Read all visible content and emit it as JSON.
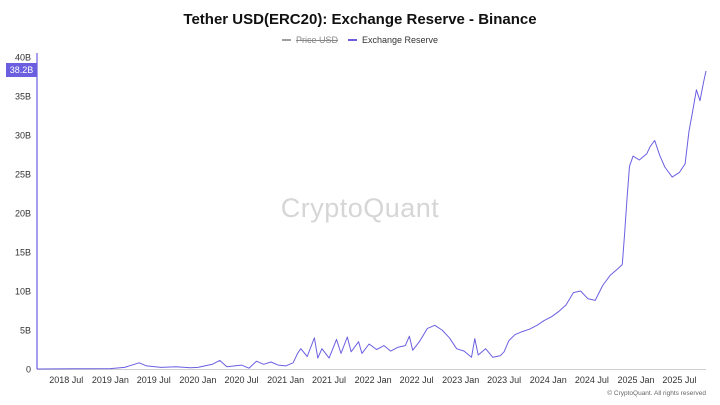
{
  "title": "Tether USD(ERC20): Exchange Reserve - Binance",
  "legend": [
    {
      "label": "Price USD",
      "color": "#a0a0a0",
      "hidden": true
    },
    {
      "label": "Exchange Reserve",
      "color": "#6b5fe0",
      "hidden": false
    }
  ],
  "watermark": "CryptoQuant",
  "copyright": "© CryptoQuant. All rights reserved",
  "current_value_label": "38.2B",
  "chart_data": {
    "type": "line",
    "title": "Tether USD(ERC20): Exchange Reserve - Binance",
    "xlabel": "",
    "ylabel": "",
    "ylim": [
      0,
      40
    ],
    "xlim": [
      "2018-03-01",
      "2025-10-20"
    ],
    "y_ticks": [
      {
        "value": 0,
        "label": "0"
      },
      {
        "value": 5,
        "label": "5B"
      },
      {
        "value": 10,
        "label": "10B"
      },
      {
        "value": 15,
        "label": "15B"
      },
      {
        "value": 20,
        "label": "20B"
      },
      {
        "value": 25,
        "label": "25B"
      },
      {
        "value": 30,
        "label": "30B"
      },
      {
        "value": 35,
        "label": "35B"
      },
      {
        "value": 40,
        "label": "40B"
      }
    ],
    "x_ticks": [
      {
        "date": "2018-07-01",
        "label": "2018 Jul"
      },
      {
        "date": "2019-01-01",
        "label": "2019 Jan"
      },
      {
        "date": "2019-07-01",
        "label": "2019 Jul"
      },
      {
        "date": "2020-01-01",
        "label": "2020 Jan"
      },
      {
        "date": "2020-07-01",
        "label": "2020 Jul"
      },
      {
        "date": "2021-01-01",
        "label": "2021 Jan"
      },
      {
        "date": "2021-07-01",
        "label": "2021 Jul"
      },
      {
        "date": "2022-01-01",
        "label": "2022 Jan"
      },
      {
        "date": "2022-07-01",
        "label": "2022 Jul"
      },
      {
        "date": "2023-01-01",
        "label": "2023 Jan"
      },
      {
        "date": "2023-07-01",
        "label": "2023 Jul"
      },
      {
        "date": "2024-01-01",
        "label": "2024 Jan"
      },
      {
        "date": "2024-07-01",
        "label": "2024 Jul"
      },
      {
        "date": "2025-01-01",
        "label": "2025 Jan"
      },
      {
        "date": "2025-07-01",
        "label": "2025 Jul"
      }
    ],
    "series": [
      {
        "name": "Exchange Reserve",
        "color": "#6b5fe0",
        "unit": "B",
        "points": [
          [
            "2018-03-01",
            0.0
          ],
          [
            "2018-08-01",
            0.02
          ],
          [
            "2019-01-01",
            0.05
          ],
          [
            "2019-03-01",
            0.2
          ],
          [
            "2019-05-01",
            0.8
          ],
          [
            "2019-06-01",
            0.4
          ],
          [
            "2019-08-01",
            0.2
          ],
          [
            "2019-10-01",
            0.3
          ],
          [
            "2019-12-01",
            0.15
          ],
          [
            "2020-01-01",
            0.2
          ],
          [
            "2020-03-01",
            0.6
          ],
          [
            "2020-04-01",
            1.1
          ],
          [
            "2020-05-01",
            0.3
          ],
          [
            "2020-07-01",
            0.5
          ],
          [
            "2020-08-01",
            0.1
          ],
          [
            "2020-09-01",
            1.0
          ],
          [
            "2020-10-01",
            0.6
          ],
          [
            "2020-11-01",
            0.9
          ],
          [
            "2020-12-01",
            0.5
          ],
          [
            "2021-01-01",
            0.4
          ],
          [
            "2021-02-01",
            0.8
          ],
          [
            "2021-02-20",
            2.0
          ],
          [
            "2021-03-05",
            2.6
          ],
          [
            "2021-04-01",
            1.6
          ],
          [
            "2021-05-01",
            4.0
          ],
          [
            "2021-05-15",
            1.4
          ],
          [
            "2021-06-01",
            2.6
          ],
          [
            "2021-07-01",
            1.4
          ],
          [
            "2021-08-01",
            3.8
          ],
          [
            "2021-08-20",
            2.0
          ],
          [
            "2021-09-15",
            4.1
          ],
          [
            "2021-10-01",
            2.2
          ],
          [
            "2021-11-01",
            3.5
          ],
          [
            "2021-11-15",
            2.0
          ],
          [
            "2021-12-15",
            3.2
          ],
          [
            "2022-01-15",
            2.5
          ],
          [
            "2022-02-15",
            3.0
          ],
          [
            "2022-03-15",
            2.3
          ],
          [
            "2022-04-15",
            2.8
          ],
          [
            "2022-05-15",
            3.0
          ],
          [
            "2022-06-01",
            4.2
          ],
          [
            "2022-06-15",
            2.4
          ],
          [
            "2022-07-15",
            3.6
          ],
          [
            "2022-08-15",
            5.2
          ],
          [
            "2022-09-15",
            5.6
          ],
          [
            "2022-10-15",
            5.0
          ],
          [
            "2022-11-15",
            4.0
          ],
          [
            "2022-12-15",
            2.6
          ],
          [
            "2023-01-15",
            2.3
          ],
          [
            "2023-02-15",
            1.5
          ],
          [
            "2023-03-01",
            3.9
          ],
          [
            "2023-03-15",
            1.8
          ],
          [
            "2023-04-15",
            2.6
          ],
          [
            "2023-05-15",
            1.5
          ],
          [
            "2023-06-15",
            1.7
          ],
          [
            "2023-07-01",
            2.2
          ],
          [
            "2023-07-20",
            3.6
          ],
          [
            "2023-08-15",
            4.4
          ],
          [
            "2023-09-15",
            4.8
          ],
          [
            "2023-10-15",
            5.1
          ],
          [
            "2023-11-15",
            5.6
          ],
          [
            "2023-12-15",
            6.2
          ],
          [
            "2024-01-15",
            6.7
          ],
          [
            "2024-02-15",
            7.4
          ],
          [
            "2024-03-15",
            8.2
          ],
          [
            "2024-04-15",
            9.8
          ],
          [
            "2024-05-15",
            10.0
          ],
          [
            "2024-06-15",
            9.0
          ],
          [
            "2024-07-15",
            8.8
          ],
          [
            "2024-08-15",
            10.7
          ],
          [
            "2024-09-15",
            12.0
          ],
          [
            "2024-10-15",
            12.8
          ],
          [
            "2024-11-05",
            13.4
          ],
          [
            "2024-11-15",
            17.5
          ],
          [
            "2024-11-25",
            22.0
          ],
          [
            "2024-12-05",
            26.0
          ],
          [
            "2024-12-20",
            27.3
          ],
          [
            "2025-01-15",
            26.8
          ],
          [
            "2025-02-15",
            27.6
          ],
          [
            "2025-03-01",
            28.5
          ],
          [
            "2025-03-20",
            29.3
          ],
          [
            "2025-04-10",
            27.4
          ],
          [
            "2025-05-01",
            25.9
          ],
          [
            "2025-06-01",
            24.6
          ],
          [
            "2025-07-01",
            25.2
          ],
          [
            "2025-07-25",
            26.3
          ],
          [
            "2025-08-10",
            30.5
          ],
          [
            "2025-08-25",
            33.0
          ],
          [
            "2025-09-10",
            35.8
          ],
          [
            "2025-09-25",
            34.4
          ],
          [
            "2025-10-10",
            36.8
          ],
          [
            "2025-10-20",
            38.2
          ]
        ]
      }
    ]
  }
}
